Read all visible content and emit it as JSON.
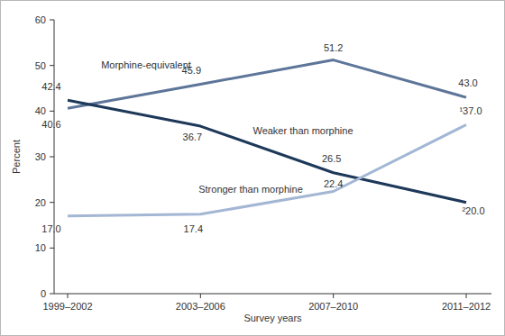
{
  "chart_data": {
    "type": "line",
    "x_label": "Survey years",
    "y_label": "Percent",
    "categories": [
      "1999–2002",
      "2003–2006",
      "2007–2010",
      "2011–2012"
    ],
    "series": [
      {
        "name": "Morphine-equivalent",
        "color": "#5d7599",
        "values": [
          40.6,
          45.9,
          51.2,
          43.0
        ],
        "value_labels": [
          "40.6",
          "45.9",
          "51.2",
          "43.0"
        ]
      },
      {
        "name": "Weaker than morphine",
        "color": "#1d3859",
        "values": [
          42.4,
          36.7,
          26.5,
          20.0
        ],
        "value_labels": [
          "42.4",
          "36.7",
          "26.5",
          "²20.0"
        ]
      },
      {
        "name": "Stronger than morphine",
        "color": "#a3b6d3",
        "values": [
          17.0,
          17.4,
          22.4,
          37.0
        ],
        "value_labels": [
          "17.0",
          "17.4",
          "22.4",
          "¹37.0"
        ]
      }
    ],
    "ylim": [
      0,
      60
    ],
    "yticks": [
      0,
      10,
      20,
      30,
      40,
      50,
      60
    ],
    "grid": false,
    "data_labels": true
  }
}
